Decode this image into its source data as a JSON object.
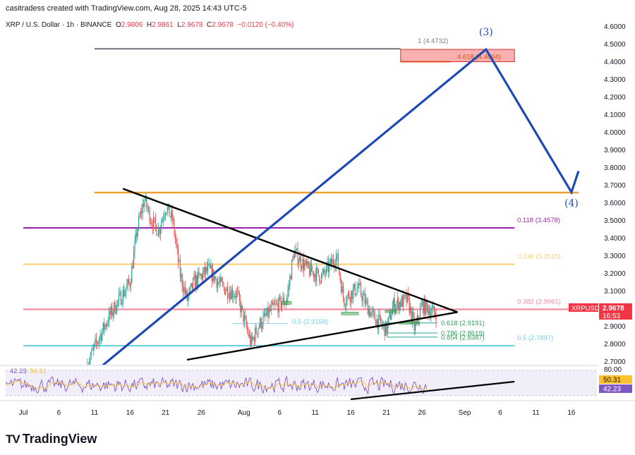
{
  "header": {
    "attribution": "casitradess created with TradingView.com, Aug 28, 2025 14:43 UTC-5",
    "symbol_title": "XRP / U.S. Dollar · 1h · BINANCE",
    "ohlc": {
      "o_label": "O",
      "o_value": "2.9806",
      "h_label": "H",
      "h_value": "2.9861",
      "l_label": "L",
      "l_value": "2.9678",
      "c_label": "C",
      "c_value": "2.9678",
      "change": "−0.0120 (−0.40%)"
    }
  },
  "colors": {
    "orange": "#f0a030",
    "purple": "#9c27b0",
    "light_orange": "#ffd27a",
    "pink": "#f28b9b",
    "cyan": "#6fd0e6",
    "blue": "#1e4ab8",
    "candle_up": "#26a69a",
    "candle_down": "#ef5350",
    "rsi": "#7e57c2",
    "rsi_ma": "#fbc02d"
  },
  "chart_data": {
    "type": "candlestick",
    "title": "XRP / U.S. Dollar · 1h · BINANCE",
    "xlabel": "",
    "ylabel": "",
    "x_ticks": [
      "Jul",
      "6",
      "11",
      "16",
      "21",
      "26",
      "Aug",
      "6",
      "11",
      "16",
      "21",
      "26",
      "Sep",
      "6",
      "11",
      "16"
    ],
    "y_ticks": [
      "4.6000",
      "4.5000",
      "4.4000",
      "4.3000",
      "4.2000",
      "4.1000",
      "4.0000",
      "3.9000",
      "3.8000",
      "3.7000",
      "3.6000",
      "3.5000",
      "3.4000",
      "3.3000",
      "3.2000",
      "3.1000",
      "3.0000",
      "2.9000",
      "2.8000",
      "2.7000"
    ],
    "ylim": [
      2.64,
      4.64
    ],
    "price_tag": {
      "symbol": "XRPUSD",
      "value": "2.9678",
      "countdown": "16:53"
    },
    "approx_path": [
      {
        "date": "Jul 10",
        "price": 2.68
      },
      {
        "date": "Jul 11",
        "price": 2.78
      },
      {
        "date": "Jul 13",
        "price": 2.95
      },
      {
        "date": "Jul 14",
        "price": 3.02
      },
      {
        "date": "Jul 16",
        "price": 3.15
      },
      {
        "date": "Jul 17",
        "price": 3.45
      },
      {
        "date": "Jul 18",
        "price": 3.62
      },
      {
        "date": "Jul 19",
        "price": 3.5
      },
      {
        "date": "Jul 20",
        "price": 3.44
      },
      {
        "date": "Jul 21",
        "price": 3.58
      },
      {
        "date": "Jul 22",
        "price": 3.5
      },
      {
        "date": "Jul 23",
        "price": 3.2
      },
      {
        "date": "Jul 24",
        "price": 3.05
      },
      {
        "date": "Jul 25",
        "price": 3.15
      },
      {
        "date": "Jul 27",
        "price": 3.22
      },
      {
        "date": "Jul 29",
        "price": 3.12
      },
      {
        "date": "Jul 31",
        "price": 3.08
      },
      {
        "date": "Aug 2",
        "price": 2.8
      },
      {
        "date": "Aug 3",
        "price": 2.9
      },
      {
        "date": "Aug 5",
        "price": 3.0
      },
      {
        "date": "Aug 7",
        "price": 3.05
      },
      {
        "date": "Aug 8",
        "price": 3.32
      },
      {
        "date": "Aug 10",
        "price": 3.22
      },
      {
        "date": "Aug 12",
        "price": 3.18
      },
      {
        "date": "Aug 14",
        "price": 3.3
      },
      {
        "date": "Aug 15",
        "price": 3.05
      },
      {
        "date": "Aug 17",
        "price": 3.12
      },
      {
        "date": "Aug 19",
        "price": 2.96
      },
      {
        "date": "Aug 21",
        "price": 2.88
      },
      {
        "date": "Aug 22",
        "price": 3.02
      },
      {
        "date": "Aug 24",
        "price": 3.05
      },
      {
        "date": "Aug 25",
        "price": 2.88
      },
      {
        "date": "Aug 26",
        "price": 3.02
      },
      {
        "date": "Aug 28",
        "price": 2.97
      }
    ],
    "horizontal_levels": [
      {
        "label": "1 (4.4732)",
        "value": 4.4732,
        "color": "#787b86",
        "from": "Jul 11",
        "to": "Aug 23"
      },
      {
        "label": "",
        "value": 4.4,
        "color": "#f0a030",
        "from": "Aug 23",
        "to": "Aug 30"
      },
      {
        "label": "",
        "value": 3.6578,
        "color": "#f0a030",
        "from": "Jul 11",
        "to": "Sep 17"
      },
      {
        "label": "0.118 (3.4578)",
        "value": 3.4578,
        "color": "#9c27b0",
        "from": "Jul 1",
        "to": "Sep 8"
      },
      {
        "label": "0.236 (3.2515)",
        "value": 3.2515,
        "color": "#ffd27a",
        "from": "Jul 1",
        "to": "Sep 8"
      },
      {
        "label": "0.382 (2.9961)",
        "value": 2.9961,
        "color": "#f28b9b",
        "from": "Jul 1",
        "to": "Sep 17"
      },
      {
        "label": "0.5 (2.7897)",
        "value": 2.7897,
        "color": "#6fd0e6",
        "from": "Jul 1",
        "to": "Sep 8"
      }
    ],
    "secondary_levels": [
      {
        "label": "0.5 (2.9158)",
        "value": 2.9158
      },
      {
        "label": "0.618 (2.9191)",
        "value": 2.9191
      },
      {
        "label": "0.786 (2.8619)",
        "value": 2.8619
      },
      {
        "label": "0.854 (2.8387)",
        "value": 2.8387
      }
    ],
    "target_box": {
      "label": "4.618 (4.4064)",
      "top": 4.47,
      "bottom": 4.4,
      "from": "Aug 23",
      "to": "Sep 8"
    },
    "wave_labels": [
      {
        "label": "(3)",
        "date": "Sep 4",
        "price": 4.55
      },
      {
        "label": "(4)",
        "date": "Sep 16",
        "price": 3.58
      }
    ],
    "wave_path": [
      {
        "date": "Jul 11",
        "price": 2.64
      },
      {
        "date": "Sep 4",
        "price": 4.47
      },
      {
        "date": "Sep 16",
        "price": 3.66
      },
      {
        "date": "Sep 17",
        "price": 3.78
      }
    ],
    "trendlines": [
      {
        "name": "upper",
        "from": {
          "date": "Jul 15",
          "price": 3.68
        },
        "to": {
          "date": "Aug 31",
          "price": 2.98
        }
      },
      {
        "name": "lower",
        "from": {
          "date": "Jul 24",
          "price": 2.71
        },
        "to": {
          "date": "Aug 31",
          "price": 2.98
        }
      }
    ],
    "rsi": {
      "value": "42.23",
      "ma_value": "50.31",
      "legend_value": "42.23",
      "legend_ma": "50.31",
      "scale_label": "80.00",
      "trendline": {
        "from": "Aug 16",
        "to": "Sep 8"
      }
    }
  }
}
